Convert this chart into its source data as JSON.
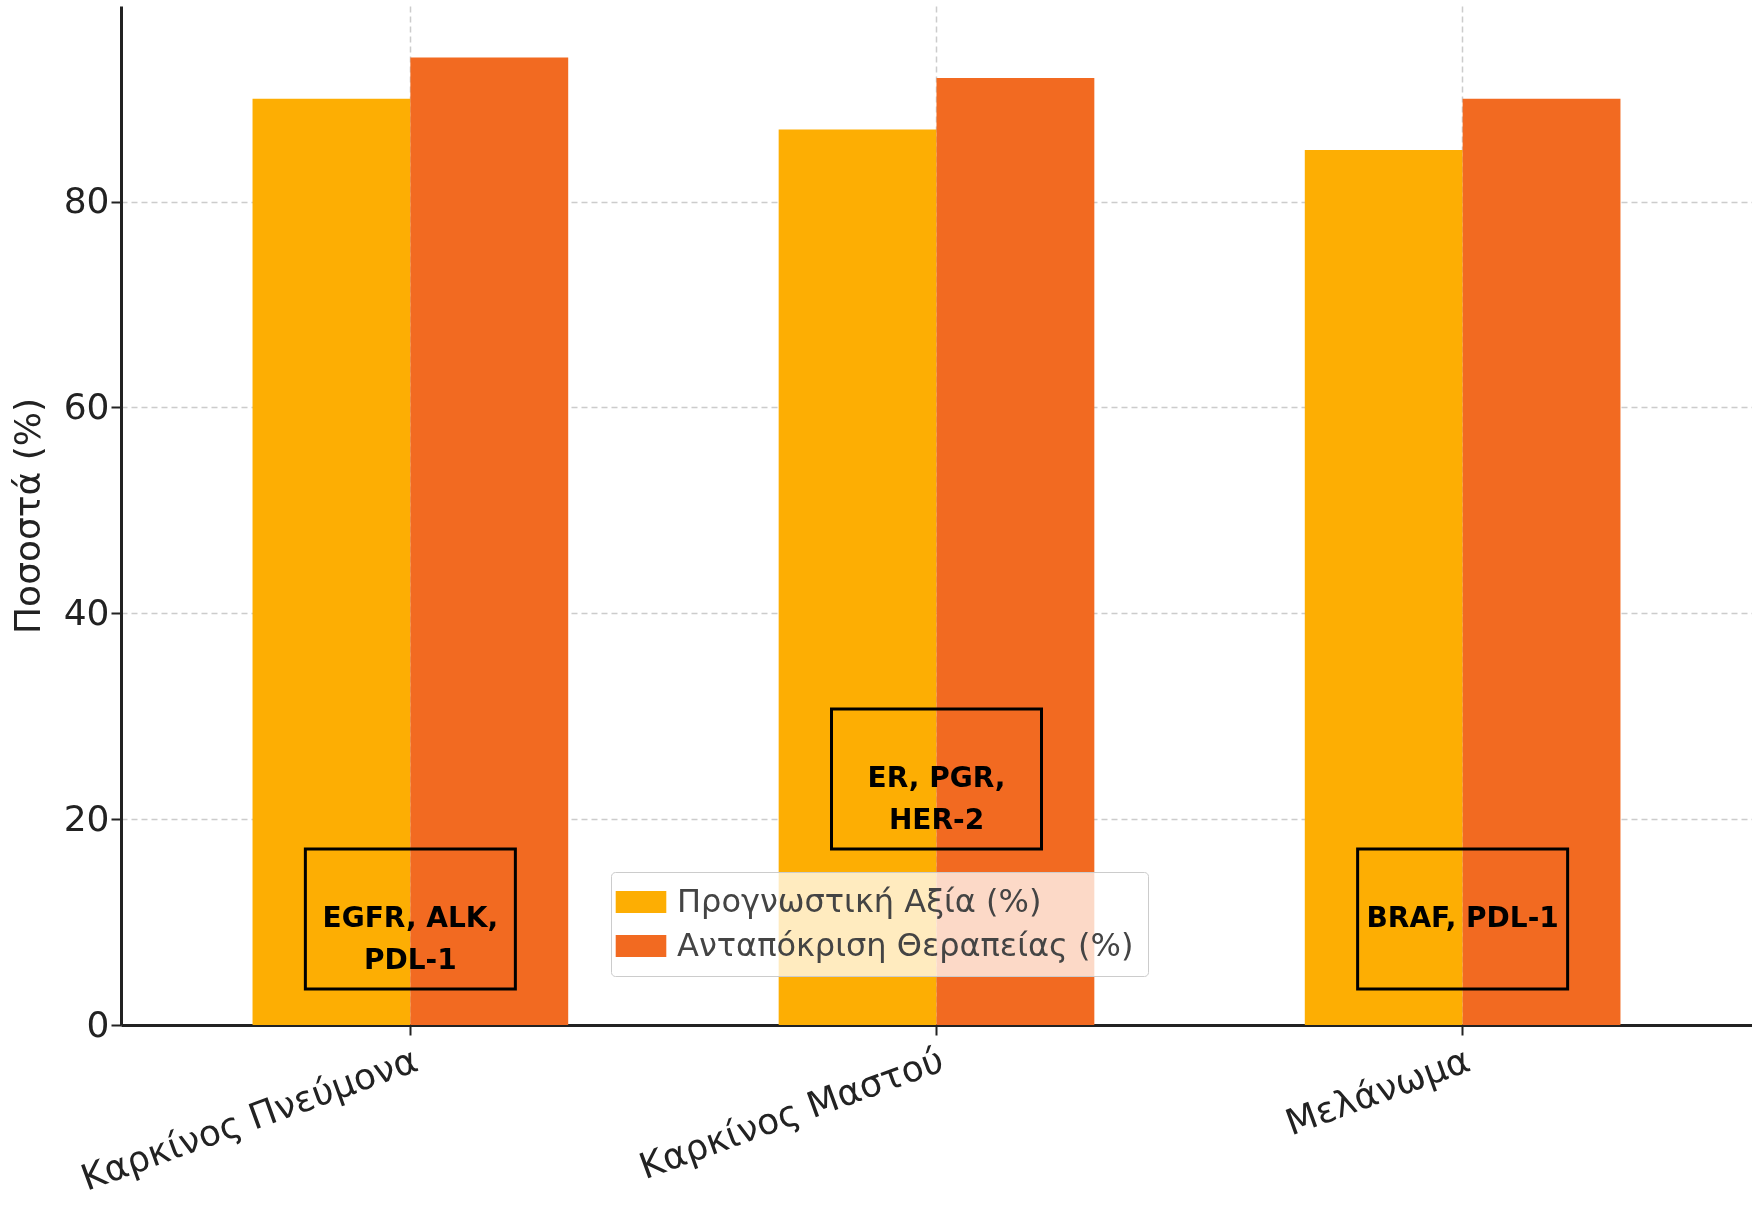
{
  "chart_data": {
    "type": "bar",
    "ylabel": "Ποσοστά (%)",
    "categories": [
      "Καρκίνος Πνεύμονα",
      "Καρκίνος Μαστού",
      "Μελάνωμα"
    ],
    "series": [
      {
        "name": "Προγνωστική Αξία (%)",
        "color": "#fdae03",
        "values": [
          90,
          87,
          85
        ]
      },
      {
        "name": "Ανταπόκριση Θεραπείας (%)",
        "color": "#f26a21",
        "values": [
          94,
          92,
          90
        ]
      }
    ],
    "ylim": [
      0,
      99
    ],
    "yticks": [
      0,
      20,
      40,
      60,
      80
    ],
    "grid": true,
    "legend": "bottom",
    "annotations": [
      {
        "text": "EGFR, ALK,\nPDL-1",
        "x": "Καρκίνος Πνεύμονα",
        "y": 10.3
      },
      {
        "text": "ER, PGR,\nHER-2",
        "x": "Καρκίνος Μαστού",
        "y": 23.9
      },
      {
        "text": "BRAF, PDL-1",
        "x": "Μελάνωμα",
        "y": 10.3
      }
    ]
  }
}
